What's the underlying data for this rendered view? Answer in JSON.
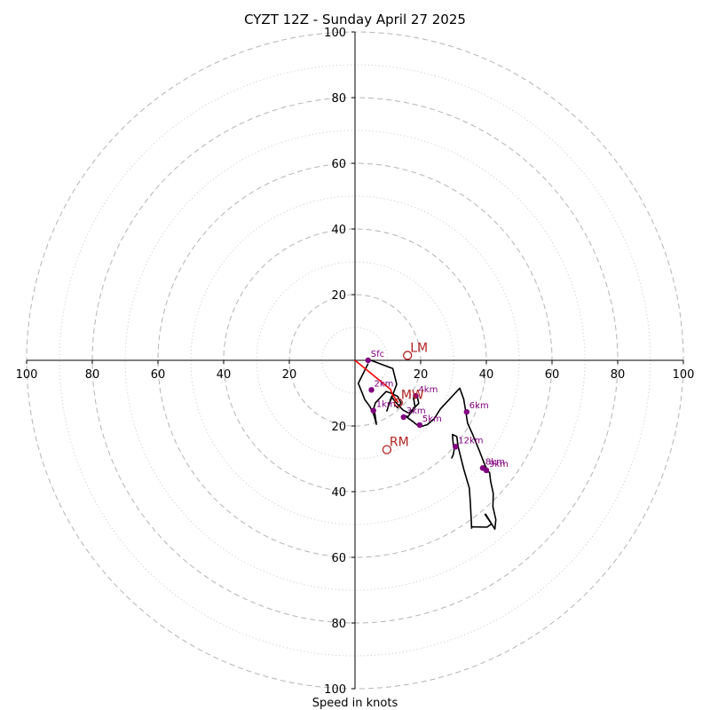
{
  "chart_data": {
    "type": "hodograph",
    "title": "CYZT 12Z - Sunday April 27 2025",
    "xlabel": "Speed in knots",
    "xlim": [
      -100,
      100
    ],
    "ylim": [
      -100,
      100
    ],
    "grid": true,
    "major_rings": [
      20,
      40,
      60,
      80,
      100
    ],
    "minor_rings": [
      10,
      30,
      50,
      70,
      90
    ],
    "ticks": {
      "x": [
        {
          "value": -100,
          "label": "100"
        },
        {
          "value": -80,
          "label": "80"
        },
        {
          "value": -60,
          "label": "60"
        },
        {
          "value": -40,
          "label": "40"
        },
        {
          "value": -20,
          "label": "20"
        },
        {
          "value": 20,
          "label": "20"
        },
        {
          "value": 40,
          "label": "40"
        },
        {
          "value": 60,
          "label": "60"
        },
        {
          "value": 80,
          "label": "80"
        },
        {
          "value": 100,
          "label": "100"
        }
      ],
      "y": [
        {
          "value": 100,
          "label": "100"
        },
        {
          "value": 80,
          "label": "80"
        },
        {
          "value": 60,
          "label": "60"
        },
        {
          "value": 40,
          "label": "40"
        },
        {
          "value": 20,
          "label": "20"
        },
        {
          "value": -20,
          "label": "20"
        },
        {
          "value": -40,
          "label": "40"
        },
        {
          "value": -60,
          "label": "60"
        },
        {
          "value": -80,
          "label": "80"
        },
        {
          "value": -100,
          "label": "100"
        }
      ]
    },
    "series": [
      {
        "color": "#000000",
        "points": [
          [
            3.5,
            0.5
          ],
          [
            11.5,
            -2.5
          ],
          [
            12.7,
            -7.3
          ],
          [
            10.3,
            -13.6
          ],
          [
            9.7,
            -15.4
          ],
          [
            11.1,
            -11.1
          ],
          [
            12.6,
            -13.0
          ],
          [
            14.6,
            -15.1
          ],
          [
            16.4,
            -16.1
          ],
          [
            19.4,
            -13.1
          ],
          [
            18.9,
            -10.6
          ],
          [
            17.8,
            -11.4
          ],
          [
            18.3,
            -14.3
          ],
          [
            16.1,
            -17.2
          ],
          [
            15.1,
            -16.8
          ],
          [
            17.7,
            -18.7
          ],
          [
            19.7,
            -20.3
          ],
          [
            22.0,
            -19.6
          ],
          [
            24.2,
            -17.7
          ],
          [
            26.0,
            -14.8
          ],
          [
            31.9,
            -8.5
          ],
          [
            33.1,
            -11.8
          ],
          [
            33.8,
            -16.1
          ],
          [
            34.3,
            -19.2
          ],
          [
            35.9,
            -22.7
          ],
          [
            37.9,
            -27.6
          ],
          [
            39.5,
            -31.7
          ],
          [
            40.2,
            -33.2
          ],
          [
            41.0,
            -34.3
          ],
          [
            41.3,
            -36.8
          ],
          [
            42.1,
            -40.6
          ],
          [
            42.0,
            -44.6
          ],
          [
            42.9,
            -48.5
          ],
          [
            42.6,
            -51.4
          ],
          [
            39.8,
            -46.9
          ],
          [
            39.6,
            -46.9
          ],
          [
            41.6,
            -49.8
          ],
          [
            40.2,
            -50.8
          ],
          [
            35.5,
            -50.7
          ],
          [
            35.5,
            -51.1
          ],
          [
            35.4,
            -48.6
          ],
          [
            35.1,
            -43.1
          ],
          [
            34.8,
            -38.9
          ],
          [
            33.1,
            -33.1
          ],
          [
            31.4,
            -26.3
          ],
          [
            31.0,
            -23.2
          ],
          [
            29.7,
            -22.6
          ],
          [
            29.8,
            -24.5
          ],
          [
            30.2,
            -27.3
          ],
          [
            29.9,
            -28.8
          ],
          [
            29.4,
            -29.9
          ]
        ]
      },
      {
        "color": "#000000",
        "points": [
          [
            4.0,
            -1.0
          ],
          [
            1.0,
            -7.0
          ],
          [
            2.0,
            -9.5
          ],
          [
            3.0,
            -12.0
          ],
          [
            4.5,
            -14.0
          ],
          [
            5.5,
            -16.0
          ],
          [
            6.0,
            -17.5
          ],
          [
            6.5,
            -19.5
          ],
          [
            5.8,
            -14.5
          ],
          [
            5.6,
            -15.0
          ],
          [
            6.2,
            -13.0
          ],
          [
            8.5,
            -10.5
          ],
          [
            9.5,
            -9.5
          ],
          [
            11.0,
            -10.0
          ],
          [
            13.0,
            -11.0
          ],
          [
            14.0,
            -13.0
          ],
          [
            13.0,
            -14.5
          ],
          [
            12.0,
            -13.5
          ]
        ]
      },
      {
        "color": "#ff0000",
        "points": [
          [
            0,
            0
          ],
          [
            10.8,
            -8.8
          ],
          [
            11.4,
            -10.4
          ],
          [
            12.5,
            -12.0
          ],
          [
            13.2,
            -12.9
          ]
        ]
      }
    ],
    "height_markers": [
      {
        "label": "Sfc",
        "u": 4.0,
        "v": 0.0
      },
      {
        "label": "2km",
        "u": 5.0,
        "v": -9.0
      },
      {
        "label": "1km",
        "u": 5.6,
        "v": -15.3
      },
      {
        "label": "3km",
        "u": 14.8,
        "v": -17.3
      },
      {
        "label": "4km",
        "u": 18.5,
        "v": -10.8
      },
      {
        "label": "5km",
        "u": 19.7,
        "v": -19.7
      },
      {
        "label": "6km",
        "u": 34.0,
        "v": -15.7
      },
      {
        "label": "12km",
        "u": 30.6,
        "v": -26.3
      },
      {
        "label": "8km",
        "u": 38.9,
        "v": -32.8
      },
      {
        "label": "9km",
        "u": 40.0,
        "v": -33.5
      }
    ],
    "marker_color": "#800080",
    "storm_motions": [
      {
        "label": "LM",
        "u": 16.0,
        "v": 1.5
      },
      {
        "label": "MW",
        "u": 13.2,
        "v": -12.9
      },
      {
        "label": "RM",
        "u": 9.7,
        "v": -27.2
      }
    ],
    "storm_motion_color": "#b22222"
  }
}
